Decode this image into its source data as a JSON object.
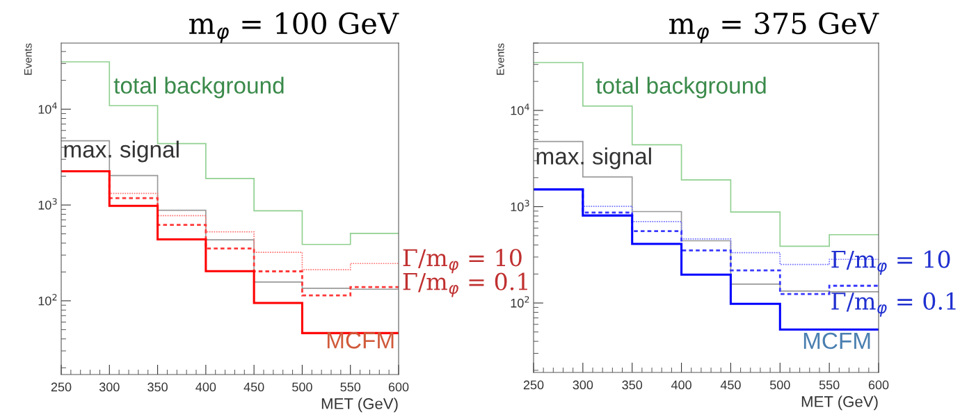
{
  "chart_data": [
    {
      "type": "histogram",
      "title": "m$_{φ}$ = 100 GeV",
      "xlabel": "MET (GeV)",
      "ylabel": "Events",
      "log": "y",
      "grid": false,
      "legend": false,
      "bins": [
        250,
        300,
        350,
        400,
        450,
        500,
        550,
        600
      ],
      "xlim": [
        250,
        600
      ],
      "xticks": [
        250,
        300,
        350,
        400,
        450,
        500,
        550,
        600
      ],
      "ylim": [
        17,
        49000
      ],
      "yticks": [
        {
          "value": 100,
          "label": "10$^{2}$"
        },
        {
          "value": 1000,
          "label": "10$^{3}$"
        },
        {
          "value": 10000,
          "label": "10$^{4}$"
        }
      ],
      "series": [
        {
          "name": "total background",
          "color": "#90d090",
          "line_style": "solid",
          "values": [
            31200,
            10900,
            4380,
            1890,
            870,
            388,
            506
          ]
        },
        {
          "name": "max. signal",
          "color": "#999999",
          "line_style": "solid",
          "values": [
            4680,
            2030,
            880,
            433,
            157,
            135,
            132
          ]
        },
        {
          "name": "Γ/m$_{φ}$ = 10",
          "color": "#ff7070",
          "line_style": "dotted",
          "values": [
            2250,
            1320,
            773,
            525,
            321,
            211,
            245
          ]
        },
        {
          "name": "Γ/m$_{φ}$ = 0.1",
          "color": "#ff3838",
          "line_style": "dashed",
          "values": [
            2250,
            1180,
            621,
            351,
            203,
            114,
            139
          ]
        },
        {
          "name": "MCFM",
          "color": "#ff0000",
          "line_style": "solid",
          "values": [
            2250,
            980,
            438,
            204,
            95,
            46,
            46
          ]
        }
      ]
    },
    {
      "type": "histogram",
      "title": "m$_{φ}$ = 375 GeV",
      "xlabel": "MET (GeV)",
      "ylabel": "Events",
      "log": "y",
      "grid": false,
      "legend": false,
      "bins": [
        250,
        300,
        350,
        400,
        450,
        500,
        550,
        600
      ],
      "xlim": [
        250,
        600
      ],
      "xticks": [
        250,
        300,
        350,
        400,
        450,
        500,
        550,
        600
      ],
      "ylim": [
        19,
        50000
      ],
      "yticks": [
        {
          "value": 100,
          "label": "10$^{2}$"
        },
        {
          "value": 1000,
          "label": "10$^{3}$"
        },
        {
          "value": 10000,
          "label": "10$^{4}$"
        }
      ],
      "series": [
        {
          "name": "total background",
          "color": "#90d090",
          "line_style": "solid",
          "values": [
            31400,
            11100,
            4390,
            1900,
            880,
            388,
            512
          ]
        },
        {
          "name": "max. signal",
          "color": "#999999",
          "line_style": "solid",
          "values": [
            4750,
            2040,
            890,
            443,
            157,
            133,
            131
          ]
        },
        {
          "name": "Γ/m$_{φ}$ = 10",
          "color": "#7070ff",
          "line_style": "dotted",
          "values": [
            1510,
            1010,
            700,
            462,
            333,
            251,
            284
          ]
        },
        {
          "name": "Γ/m$_{φ}$ = 0.1",
          "color": "#3838ff",
          "line_style": "dashed",
          "values": [
            1510,
            870,
            558,
            352,
            218,
            124,
            151
          ]
        },
        {
          "name": "MCFM",
          "color": "#0000ff",
          "line_style": "solid",
          "values": [
            1510,
            810,
            411,
            197,
            98,
            53,
            53
          ]
        }
      ]
    }
  ]
}
